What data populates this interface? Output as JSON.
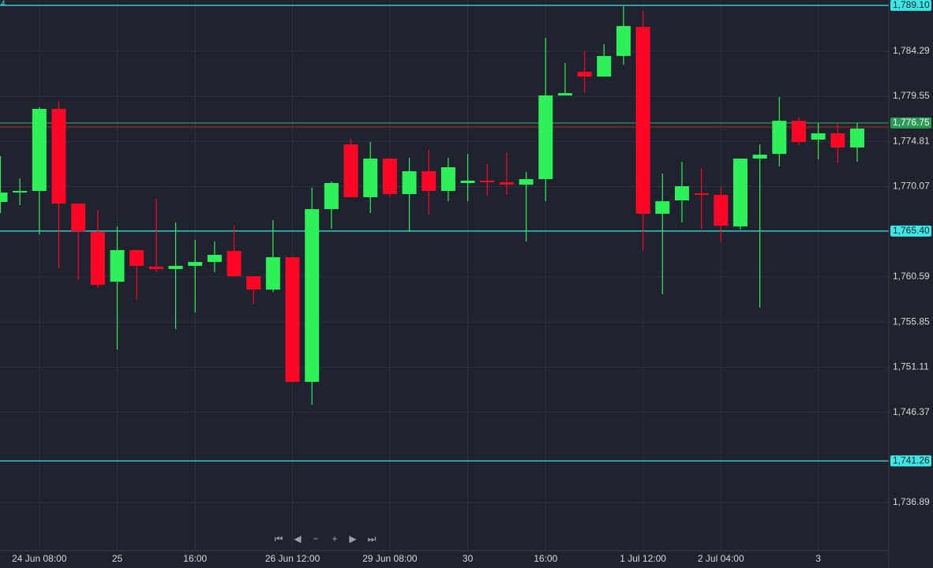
{
  "chart_data": {
    "type": "candlestick",
    "corner_label": "4",
    "categories": [
      null,
      null,
      "24 Jun 08:00",
      null,
      null,
      null,
      "25",
      null,
      null,
      null,
      "16:00",
      null,
      null,
      null,
      null,
      "26 Jun 12:00",
      null,
      null,
      null,
      null,
      "29 Jun 08:00",
      null,
      null,
      null,
      "30",
      null,
      null,
      null,
      "16:00",
      null,
      null,
      null,
      null,
      "1 Jul 12:00",
      null,
      null,
      null,
      "2 Jul 04:00",
      null,
      null,
      null,
      null,
      "3",
      null,
      null
    ],
    "open": [
      1768.45,
      1769.53,
      1769.61,
      1778.23,
      1768.28,
      1765.3,
      1760.08,
      1763.4,
      1761.66,
      1761.41,
      1761.74,
      1762.15,
      1763.31,
      1760.66,
      1759.25,
      1762.65,
      1749.56,
      1767.7,
      1774.5,
      1768.95,
      1773.01,
      1769.28,
      1771.68,
      1769.61,
      1770.44,
      1770.69,
      1770.52,
      1770.27,
      1770.85,
      1779.64,
      1782.12,
      1781.62,
      1783.78,
      1786.84,
      1767.21,
      1768.62,
      1769.36,
      1769.2,
      1765.88,
      1773.01,
      1773.5,
      1776.98,
      1775.0,
      1775.66,
      1774.17
    ],
    "high": [
      1773.26,
      1770.94,
      1778.39,
      1779.06,
      1768.28,
      1767.62,
      1765.88,
      1763.4,
      1768.78,
      1766.3,
      1764.47,
      1764.31,
      1765.96,
      1760.66,
      1766.54,
      1762.65,
      1769.94,
      1770.6,
      1775.08,
      1774.75,
      1773.01,
      1773.09,
      1773.92,
      1773.09,
      1773.5,
      1772.43,
      1773.67,
      1771.6,
      1785.68,
      1783.03,
      1784.27,
      1785.02,
      1789.0,
      1788.5,
      1771.43,
      1772.68,
      1772.01,
      1770.02,
      1773.01,
      1774.5,
      1779.47,
      1777.32,
      1776.74,
      1776.74,
      1776.74
    ],
    "low": [
      1767.29,
      1768.12,
      1765.05,
      1761.49,
      1760.25,
      1759.42,
      1752.96,
      1758.18,
      1761.08,
      1755.11,
      1756.85,
      1761.08,
      1760.66,
      1757.76,
      1759.01,
      1749.56,
      1747.16,
      1765.63,
      1768.95,
      1767.29,
      1768.95,
      1765.3,
      1767.12,
      1768.53,
      1768.53,
      1769.11,
      1769.2,
      1764.31,
      1768.53,
      1779.64,
      1779.97,
      1781.62,
      1782.87,
      1763.4,
      1758.76,
      1766.3,
      1765.63,
      1764.23,
      1765.55,
      1757.35,
      1772.18,
      1774.42,
      1772.92,
      1772.51,
      1772.68
    ],
    "close": [
      1769.44,
      1769.61,
      1778.23,
      1768.28,
      1765.38,
      1759.75,
      1763.4,
      1761.74,
      1761.41,
      1761.74,
      1762.15,
      1762.9,
      1760.66,
      1759.25,
      1762.65,
      1749.56,
      1767.7,
      1770.44,
      1768.95,
      1773.01,
      1769.28,
      1771.68,
      1769.61,
      1772.1,
      1770.69,
      1770.52,
      1770.27,
      1770.85,
      1779.64,
      1779.88,
      1781.62,
      1783.78,
      1786.93,
      1767.21,
      1768.53,
      1770.11,
      1769.2,
      1765.96,
      1773.01,
      1773.42,
      1776.98,
      1774.75,
      1775.66,
      1774.17,
      1776.16
    ],
    "up_color": "#2ef05a",
    "down_color": "#ff0626",
    "ylim": [
      1731.84,
      1789.66
    ],
    "yticks": [
      {
        "value": 1736.89,
        "label": "1,736.89"
      },
      {
        "value": 1746.37,
        "label": "1,746.37"
      },
      {
        "value": 1751.11,
        "label": "1,751.11"
      },
      {
        "value": 1755.85,
        "label": "1,755.85"
      },
      {
        "value": 1760.59,
        "label": "1,760.59"
      },
      {
        "value": 1770.07,
        "label": "1,770.07"
      },
      {
        "value": 1774.81,
        "label": "1,774.81"
      },
      {
        "value": 1779.55,
        "label": "1,779.55"
      },
      {
        "value": 1784.29,
        "label": "1,784.29"
      }
    ],
    "grid": true,
    "levels": [
      {
        "value": 1789.1,
        "label": "1,789.10",
        "color": "#3ee6e6"
      },
      {
        "value": 1765.4,
        "label": "1,765.40",
        "color": "#3ee6e6"
      },
      {
        "value": 1741.26,
        "label": "1,741.26",
        "color": "#3ee6e6"
      },
      {
        "value": 1776.32,
        "color": "#b0202a"
      },
      {
        "value": 1776.75,
        "label": "1,776.75",
        "color": "#2a9a55"
      }
    ]
  }
}
